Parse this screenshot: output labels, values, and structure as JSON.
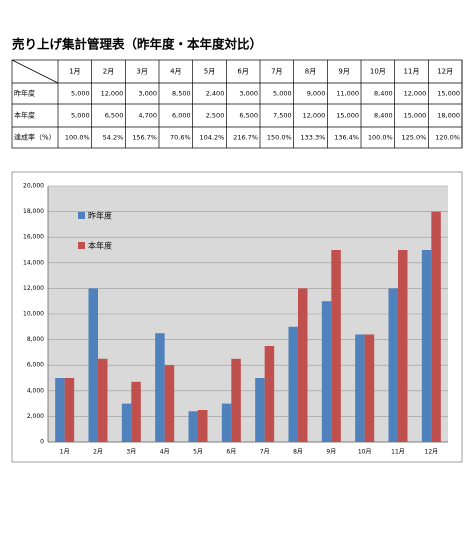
{
  "title": "売り上げ集計管理表（昨年度・本年度対比）",
  "table": {
    "header": [
      "1月",
      "2月",
      "3月",
      "4月",
      "5月",
      "6月",
      "7月",
      "8月",
      "9月",
      "10月",
      "11月",
      "12月"
    ],
    "rows": [
      {
        "label": "昨年度",
        "cells": [
          "5,000",
          "12,000",
          "3,000",
          "8,500",
          "2,400",
          "3,000",
          "5,000",
          "9,000",
          "11,000",
          "8,400",
          "12,000",
          "15,000"
        ]
      },
      {
        "label": "本年度",
        "cells": [
          "5,000",
          "6,500",
          "4,700",
          "6,000",
          "2,500",
          "6,500",
          "7,500",
          "12,000",
          "15,000",
          "8,400",
          "15,000",
          "18,000"
        ]
      },
      {
        "label": "達成率（%）",
        "cells": [
          "100.0%",
          "54.2%",
          "156.7%",
          "70.6%",
          "104.2%",
          "216.7%",
          "150.0%",
          "133.3%",
          "136.4%",
          "100.0%",
          "125.0%",
          "120.0%"
        ]
      }
    ]
  },
  "chart_data": {
    "type": "bar",
    "categories": [
      "1月",
      "2月",
      "3月",
      "4月",
      "5月",
      "6月",
      "7月",
      "8月",
      "9月",
      "10月",
      "11月",
      "12月"
    ],
    "series": [
      {
        "name": "昨年度",
        "color": "#4f81bd",
        "values": [
          5000,
          12000,
          3000,
          8500,
          2400,
          3000,
          5000,
          9000,
          11000,
          8400,
          12000,
          15000
        ]
      },
      {
        "name": "本年度",
        "color": "#c0504d",
        "values": [
          5000,
          6500,
          4700,
          6000,
          2500,
          6500,
          7500,
          12000,
          15000,
          8400,
          15000,
          18000
        ]
      }
    ],
    "ylim": [
      0,
      20000
    ],
    "yticks": [
      0,
      {
        "value": 2000,
        "label": "2,000"
      },
      {
        "value": 4000,
        "label": "4,000"
      },
      {
        "value": 6000,
        "label": "6,000"
      },
      {
        "value": 8000,
        "label": "8,000"
      },
      {
        "value": 10000,
        "label": "10,000"
      },
      {
        "value": 12000,
        "label": "12,000"
      },
      {
        "value": 14000,
        "label": "14,000"
      },
      {
        "value": 16000,
        "label": "16,000"
      },
      {
        "value": 18000,
        "label": "18,000"
      },
      {
        "value": 20000,
        "label": "20,000"
      }
    ],
    "grid": true,
    "legend": "top-left"
  }
}
